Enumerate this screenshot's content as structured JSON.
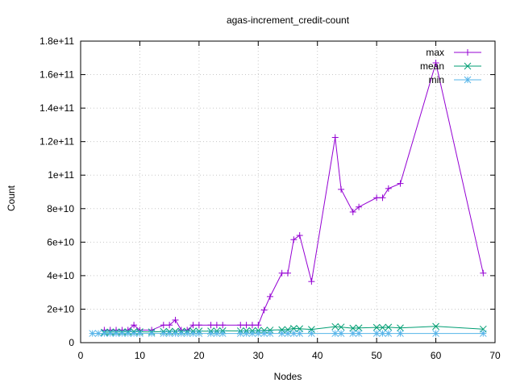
{
  "chart_data": {
    "type": "line",
    "title": "agas-increment_credit-count",
    "xlabel": "Nodes",
    "ylabel": "Count",
    "xlim": [
      0,
      70
    ],
    "ylim": [
      0,
      180000000000
    ],
    "x_ticks": [
      0,
      10,
      20,
      30,
      40,
      50,
      60,
      70
    ],
    "x_tick_labels": [
      "0",
      "10",
      "20",
      "30",
      "40",
      "50",
      "60",
      "70"
    ],
    "y_ticks": [
      0,
      20000000000,
      40000000000,
      60000000000,
      80000000000,
      100000000000,
      120000000000,
      140000000000,
      160000000000,
      180000000000
    ],
    "y_tick_labels": [
      "0",
      "2e+10",
      "4e+10",
      "6e+10",
      "8e+10",
      "1e+11",
      "1.2e+11",
      "1.4e+11",
      "1.6e+11",
      "1.8e+11"
    ],
    "grid": true,
    "legend_position": "top-right",
    "series": [
      {
        "name": "max",
        "color": "#9400d3",
        "marker": "plus",
        "x": [
          4,
          5,
          6,
          7,
          8,
          9,
          10,
          12,
          14,
          15,
          16,
          17,
          18,
          19,
          20,
          22,
          23,
          24,
          27,
          28,
          29,
          30,
          31,
          32,
          34,
          35,
          36,
          37,
          39,
          43,
          44,
          46,
          47,
          50,
          51,
          52,
          54,
          60,
          68
        ],
        "y": [
          7500000000,
          7500000000,
          7500000000,
          7500000000,
          7500000000,
          10500000000,
          7500000000,
          7500000000,
          10500000000,
          10500000000,
          13500000000,
          7500000000,
          7500000000,
          10500000000,
          10500000000,
          10500000000,
          10500000000,
          10500000000,
          10500000000,
          10500000000,
          10500000000,
          10500000000,
          19500000000,
          27500000000,
          41500000000,
          41500000000,
          61500000000,
          64000000000,
          36500000000,
          122500000000,
          91500000000,
          78000000000,
          81000000000,
          86500000000,
          86500000000,
          92000000000,
          95000000000,
          167000000000,
          41500000000
        ]
      },
      {
        "name": "mean",
        "color": "#009e73",
        "marker": "cross",
        "x": [
          4,
          5,
          6,
          7,
          8,
          9,
          10,
          12,
          14,
          15,
          16,
          17,
          18,
          19,
          20,
          22,
          23,
          24,
          27,
          28,
          29,
          30,
          31,
          32,
          34,
          35,
          36,
          37,
          39,
          43,
          44,
          46,
          47,
          50,
          51,
          52,
          54,
          60,
          68
        ],
        "y": [
          6200000000,
          6300000000,
          6400000000,
          6400000000,
          6500000000,
          6600000000,
          6500000000,
          6400000000,
          6700000000,
          6600000000,
          6800000000,
          6700000000,
          6800000000,
          6900000000,
          6900000000,
          6900000000,
          7000000000,
          7100000000,
          7000000000,
          7100000000,
          7100000000,
          7200000000,
          7300000000,
          7500000000,
          7700000000,
          7800000000,
          8500000000,
          8300000000,
          7900000000,
          9600000000,
          9300000000,
          8600000000,
          8800000000,
          9100000000,
          9000000000,
          9200000000,
          8800000000,
          9700000000,
          8100000000
        ]
      },
      {
        "name": "min",
        "color": "#56b4e9",
        "marker": "star",
        "x": [
          2,
          3,
          4,
          5,
          6,
          7,
          8,
          9,
          10,
          12,
          14,
          15,
          16,
          17,
          18,
          19,
          20,
          22,
          23,
          24,
          27,
          28,
          29,
          30,
          31,
          32,
          34,
          35,
          36,
          37,
          39,
          43,
          44,
          46,
          47,
          50,
          51,
          52,
          54,
          60,
          68
        ],
        "y": [
          5500000000,
          5500000000,
          5500000000,
          5500000000,
          5500000000,
          5500000000,
          5500000000,
          5500000000,
          5500000000,
          5500000000,
          5500000000,
          5500000000,
          5500000000,
          5500000000,
          5500000000,
          5500000000,
          5500000000,
          5500000000,
          5500000000,
          5500000000,
          5500000000,
          5500000000,
          5500000000,
          5500000000,
          5500000000,
          5500000000,
          5500000000,
          5500000000,
          5500000000,
          5500000000,
          5500000000,
          5500000000,
          5500000000,
          5500000000,
          5500000000,
          5500000000,
          5500000000,
          5500000000,
          5500000000,
          5500000000,
          5500000000
        ]
      }
    ]
  }
}
